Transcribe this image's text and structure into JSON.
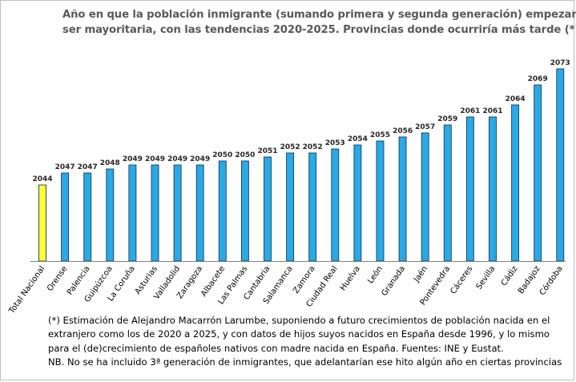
{
  "title": {
    "line1": "Año en que la población inmigrante (sumando primera y segunda generación)  empezaría a",
    "line2": "ser mayoritaria, con las tendencias 2020-2025. Provincias donde ocurriría más tarde (*)"
  },
  "footnote": {
    "line1": "(*) Estimación de Alejandro Macarrón Larumbe, suponiendo  a futuro crecimientos de población nacida en el",
    "line2": "extranjero como los de 2020 a 2025, y con datos de hijos suyos nacidos en España desde 1996, y lo mismo",
    "line3": "para el (de)crecimiento de españoles nativos con madre nacida en España. Fuentes: INE y Eustat.",
    "line4": "NB. No se ha incluido 3ª generación de inmigrantes, que adelantarían ese hito algún año en ciertas provincias"
  },
  "chart_data": {
    "type": "bar",
    "title": "Año en que la población inmigrante (sumando primera y segunda generación)  empezaría a ser mayoritaria, con las tendencias 2020-2025. Provincias donde ocurriría más tarde (*)",
    "categories": [
      "Total Nacional",
      "Orense",
      "Palencia",
      "Guipúzcoa",
      "La Coruña",
      "Asturias",
      "Valladolid",
      "Zaragoza",
      "Albacete",
      "Las Palmas",
      "Cantabria",
      "Salamanca",
      "Zamora",
      "Ciudad Real",
      "Huelva",
      "León",
      "Granada",
      "Jaén",
      "Pontevedra",
      "Cáceres",
      "Sevilla",
      "Cádiz",
      "Badajoz",
      "Córdoba"
    ],
    "values": [
      2044,
      2047,
      2047,
      2048,
      2049,
      2049,
      2049,
      2049,
      2050,
      2050,
      2051,
      2052,
      2052,
      2053,
      2054,
      2055,
      2056,
      2057,
      2059,
      2061,
      2061,
      2064,
      2069,
      2073
    ],
    "ylim": [
      2025,
      2073
    ],
    "highlight_index": 0,
    "colors": {
      "highlight": "#ffff33",
      "bar": "#29a9e6",
      "bar_edge": "#1a3b5c",
      "axis": "#7f7f7f"
    },
    "legend": "none",
    "grid": false
  }
}
